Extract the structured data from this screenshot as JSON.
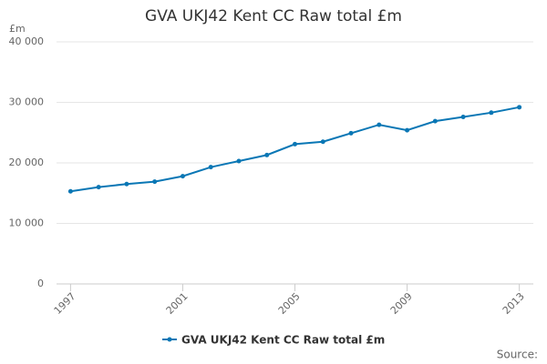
{
  "chart_data": {
    "type": "line",
    "title": "GVA UKJ42 Kent CC Raw total £m",
    "y_label": "£m",
    "source": "Source:",
    "x": [
      1997,
      1998,
      1999,
      2000,
      2001,
      2002,
      2003,
      2004,
      2005,
      2006,
      2007,
      2008,
      2009,
      2010,
      2011,
      2012,
      2013
    ],
    "series": [
      {
        "name": "GVA UKJ42 Kent CC Raw total £m",
        "color": "#0a77b5",
        "values": [
          15300,
          16000,
          16500,
          16900,
          17800,
          19300,
          20300,
          21300,
          23100,
          23500,
          24900,
          26300,
          25400,
          26900,
          27600,
          28300,
          29200
        ]
      }
    ],
    "xlim": [
      1996.5,
      2013.5
    ],
    "xticks": [
      1997,
      2001,
      2005,
      2009,
      2013
    ],
    "ylim": [
      0,
      40000
    ],
    "yticks": [
      0,
      {
        "value": 10000,
        "label": "10 000"
      },
      {
        "value": 20000,
        "label": "20 000"
      },
      {
        "value": 30000,
        "label": "30 000"
      },
      {
        "value": 40000,
        "label": "40 000"
      }
    ],
    "grid": true
  }
}
